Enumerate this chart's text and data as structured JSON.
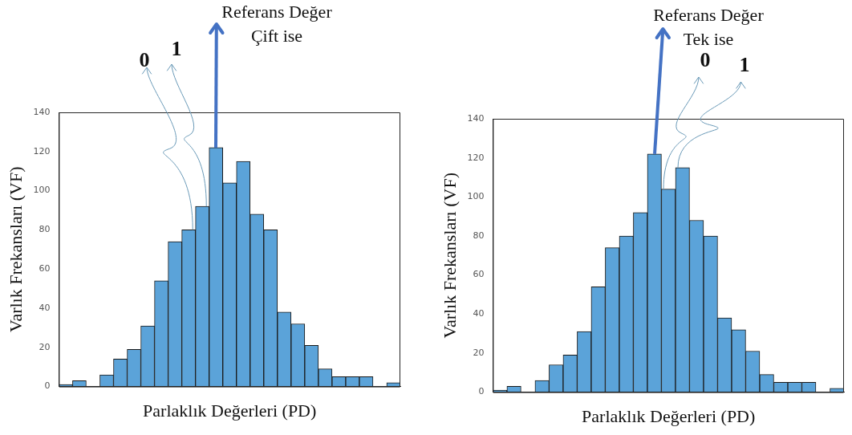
{
  "chart_data": [
    {
      "type": "bar",
      "xlabel": "Parlaklık Değerleri (PD)",
      "ylabel": "Varlık Frekansları (VF)",
      "color": "#5ba3d9",
      "categories": [
        null,
        null,
        null,
        null,
        null,
        null,
        null,
        null,
        null,
        null,
        null,
        null,
        null,
        null,
        null,
        null,
        null,
        null,
        null,
        null,
        null,
        null,
        null,
        null,
        null
      ],
      "values": [
        1,
        3,
        0,
        6,
        14,
        19,
        31,
        54,
        74,
        80,
        92,
        122,
        104,
        115,
        88,
        80,
        38,
        32,
        21,
        9,
        5,
        5,
        5,
        0,
        2
      ],
      "ylim": [
        0,
        140
      ],
      "yticks": [
        0,
        20,
        40,
        60,
        80,
        100,
        120,
        140
      ],
      "grid": false,
      "annotations": [
        "Referans Değer",
        "Çift ise",
        "0",
        "1"
      ]
    },
    {
      "type": "bar",
      "xlabel": "Parlaklık Değerleri (PD)",
      "ylabel": "Varlık Frekansları (VF)",
      "color": "#5ba3d9",
      "categories": [
        null,
        null,
        null,
        null,
        null,
        null,
        null,
        null,
        null,
        null,
        null,
        null,
        null,
        null,
        null,
        null,
        null,
        null,
        null,
        null,
        null,
        null,
        null,
        null,
        null
      ],
      "values": [
        1,
        3,
        0,
        6,
        14,
        19,
        31,
        54,
        74,
        80,
        92,
        122,
        104,
        115,
        88,
        80,
        38,
        32,
        21,
        9,
        5,
        5,
        5,
        0,
        2
      ],
      "ylim": [
        0,
        140
      ],
      "yticks": [
        0,
        20,
        40,
        60,
        80,
        100,
        120,
        140
      ],
      "grid": false,
      "annotations": [
        "Referans Değer",
        "Tek ise",
        "0",
        "1"
      ]
    }
  ]
}
